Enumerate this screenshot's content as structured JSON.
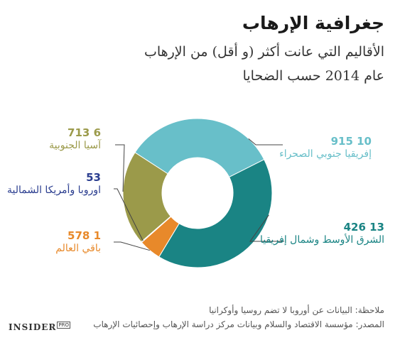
{
  "chart_data": {
    "type": "pie",
    "title": "جغرافية الإرهاب",
    "subtitle_line1": "الأقاليم التي عانت أكثر (و أقل) من الإرهاب",
    "subtitle_line2": "عام 2014 حسب الضحايا",
    "slices": [
      {
        "name": "إفريقيا جنوبي الصحراء",
        "value": 10915,
        "label": "10 915",
        "color": "#68bfc9"
      },
      {
        "name": "الشرق الأوسط وشمال إفريقيا",
        "value": 13426,
        "label": "13 426",
        "color": "#1a8484"
      },
      {
        "name": "باقي العالم",
        "value": 1578,
        "label": "1 578",
        "color": "#e8892a"
      },
      {
        "name": "اوروبا وأمريكا الشمالية",
        "value": 53,
        "label": "53",
        "color": "#2a3d8f"
      },
      {
        "name": "آسيا الجنوبية",
        "value": 6713,
        "label": "6 713",
        "color": "#9b9a4a"
      }
    ]
  },
  "notes": {
    "note": "ملاحظة: البيانات عن أوروبا لا تضم روسيا وأوكرانيا",
    "source": "المصدر: مؤسسة الاقتصاد والسلام وبيانات مركز دراسة الإرهاب وإحصائيات الإرهاب"
  },
  "logo": {
    "main": "INSIDER",
    "badge": "PRO"
  }
}
